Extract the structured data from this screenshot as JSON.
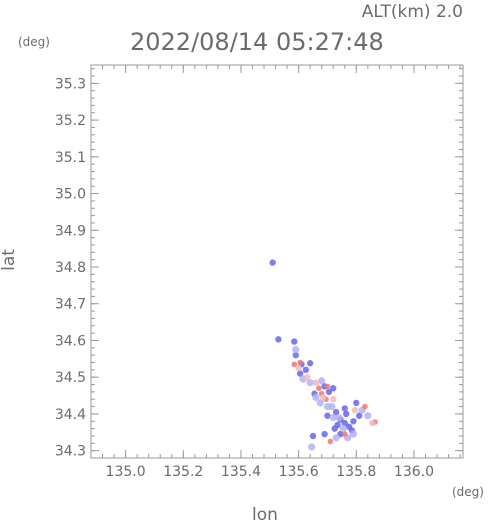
{
  "header": {
    "altitude_label": "ALT(km) 2.0",
    "timestamp": "2022/08/14 05:27:48"
  },
  "chart_data": {
    "type": "scatter",
    "title": "",
    "xlabel": "lon",
    "ylabel": "lat",
    "x_unit": "(deg)",
    "y_unit": "(deg)",
    "xlim": [
      134.88,
      136.17
    ],
    "ylim": [
      34.28,
      35.35
    ],
    "xticks": [
      135.0,
      135.2,
      135.4,
      135.6,
      135.8,
      136.0
    ],
    "xtick_labels": [
      "135.0",
      "135.2",
      "135.4",
      "135.6",
      "135.8",
      "136.0"
    ],
    "yticks": [
      34.3,
      34.4,
      34.5,
      34.6,
      34.7,
      34.8,
      34.9,
      35.0,
      35.1,
      35.2,
      35.3
    ],
    "ytick_labels": [
      "34.3",
      "34.4",
      "34.5",
      "34.6",
      "34.7",
      "34.8",
      "34.9",
      "35.0",
      "35.1",
      "35.2",
      "35.3"
    ],
    "grid": false,
    "colors": {
      "axis": "#9a9a9a",
      "text": "#6b6b6b",
      "blue": "#6666ee",
      "light_blue": "#b3b3f5",
      "red": "#ee7777",
      "light_red": "#f5b8b8"
    },
    "series": [
      {
        "color": "blue",
        "points": [
          {
            "lon": 135.51,
            "lat": 34.812
          },
          {
            "lon": 135.53,
            "lat": 34.603
          },
          {
            "lon": 135.585,
            "lat": 34.597
          },
          {
            "lon": 135.59,
            "lat": 34.56
          },
          {
            "lon": 135.61,
            "lat": 34.535
          },
          {
            "lon": 135.64,
            "lat": 34.538
          },
          {
            "lon": 135.625,
            "lat": 34.52
          },
          {
            "lon": 135.605,
            "lat": 34.51
          },
          {
            "lon": 135.655,
            "lat": 34.455
          },
          {
            "lon": 135.69,
            "lat": 34.475
          },
          {
            "lon": 135.72,
            "lat": 34.47
          },
          {
            "lon": 135.705,
            "lat": 34.46
          },
          {
            "lon": 135.73,
            "lat": 34.405
          },
          {
            "lon": 135.745,
            "lat": 34.385
          },
          {
            "lon": 135.76,
            "lat": 34.375
          },
          {
            "lon": 135.775,
            "lat": 34.365
          },
          {
            "lon": 135.735,
            "lat": 34.37
          },
          {
            "lon": 135.79,
            "lat": 34.38
          },
          {
            "lon": 135.81,
            "lat": 34.395
          },
          {
            "lon": 135.765,
            "lat": 34.4
          },
          {
            "lon": 135.725,
            "lat": 34.36
          },
          {
            "lon": 135.745,
            "lat": 34.345
          },
          {
            "lon": 135.65,
            "lat": 34.34
          },
          {
            "lon": 135.7,
            "lat": 34.395
          },
          {
            "lon": 135.69,
            "lat": 34.345
          },
          {
            "lon": 135.76,
            "lat": 34.415
          },
          {
            "lon": 135.8,
            "lat": 34.43
          },
          {
            "lon": 135.785,
            "lat": 34.355
          }
        ]
      },
      {
        "color": "light_blue",
        "points": [
          {
            "lon": 135.59,
            "lat": 34.575
          },
          {
            "lon": 135.615,
            "lat": 34.495
          },
          {
            "lon": 135.64,
            "lat": 34.485
          },
          {
            "lon": 135.66,
            "lat": 34.445
          },
          {
            "lon": 135.675,
            "lat": 34.43
          },
          {
            "lon": 135.715,
            "lat": 34.42
          },
          {
            "lon": 135.74,
            "lat": 34.39
          },
          {
            "lon": 135.72,
            "lat": 34.39
          },
          {
            "lon": 135.755,
            "lat": 34.36
          },
          {
            "lon": 135.73,
            "lat": 34.335
          },
          {
            "lon": 135.77,
            "lat": 34.335
          },
          {
            "lon": 135.82,
            "lat": 34.41
          },
          {
            "lon": 135.84,
            "lat": 34.395
          },
          {
            "lon": 135.645,
            "lat": 34.31
          },
          {
            "lon": 135.79,
            "lat": 34.345
          },
          {
            "lon": 135.7,
            "lat": 34.42
          },
          {
            "lon": 135.68,
            "lat": 34.49
          }
        ]
      },
      {
        "color": "red",
        "points": [
          {
            "lon": 135.585,
            "lat": 34.535
          },
          {
            "lon": 135.605,
            "lat": 34.54
          },
          {
            "lon": 135.68,
            "lat": 34.455
          },
          {
            "lon": 135.67,
            "lat": 34.47
          },
          {
            "lon": 135.695,
            "lat": 34.44
          },
          {
            "lon": 135.7,
            "lat": 34.475
          },
          {
            "lon": 135.865,
            "lat": 34.378
          },
          {
            "lon": 135.83,
            "lat": 34.42
          },
          {
            "lon": 135.71,
            "lat": 34.325
          },
          {
            "lon": 135.76,
            "lat": 34.345
          }
        ]
      },
      {
        "color": "light_red",
        "points": [
          {
            "lon": 135.6,
            "lat": 34.525
          },
          {
            "lon": 135.685,
            "lat": 34.445
          },
          {
            "lon": 135.66,
            "lat": 34.485
          },
          {
            "lon": 135.855,
            "lat": 34.375
          },
          {
            "lon": 135.795,
            "lat": 34.41
          },
          {
            "lon": 135.63,
            "lat": 34.5
          },
          {
            "lon": 135.72,
            "lat": 34.44
          }
        ]
      }
    ]
  }
}
